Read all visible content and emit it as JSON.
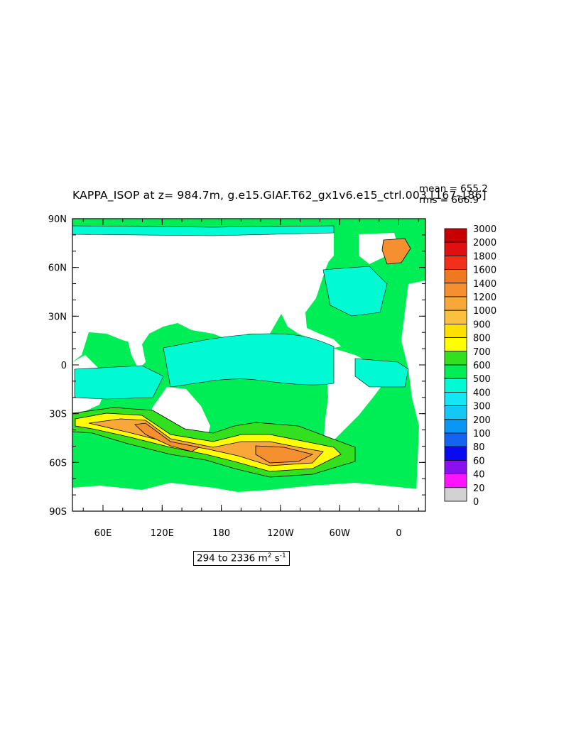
{
  "title": "KAPPA_ISOP at z= 984.7m, g.e15.GIAF.T62_gx1v6.e15_ctrl.003 [167-186]",
  "stats": {
    "mean": "mean = 655.2",
    "rms": "rms = 666.9"
  },
  "range": {
    "text": "294 to 2336 m",
    "unit_sup": "2",
    "unit_s": " s",
    "unit_s_sup": "-1"
  },
  "lat_labels": [
    "90N",
    "60N",
    "30N",
    "0",
    "30S",
    "60S",
    "90S"
  ],
  "lon_labels": [
    "60E",
    "120E",
    "180",
    "120W",
    "60W",
    "0"
  ],
  "colorbar": {
    "labels": [
      "3000",
      "2000",
      "1800",
      "1600",
      "1400",
      "1200",
      "1000",
      "900",
      "800",
      "700",
      "600",
      "500",
      "400",
      "300",
      "200",
      "100",
      "80",
      "60",
      "40",
      "20",
      "0"
    ],
    "colors": [
      "#c80000",
      "#e01010",
      "#f03018",
      "#f07820",
      "#f49030",
      "#f8a838",
      "#fcc040",
      "#ffe000",
      "#ffff00",
      "#33e01e",
      "#00ee55",
      "#00fbd2",
      "#14e6f5",
      "#14c8f5",
      "#0a96f5",
      "#1464f0",
      "#0a0af0",
      "#8c0ff0",
      "#ff14ff",
      "#d2d2d2",
      "#707070"
    ]
  },
  "colors": {
    "ocean_base": "#00ee55",
    "tropics": "#00fbd2",
    "southern_high": "#f8a838",
    "southern_core": "#ffff00",
    "land": "#ffffff"
  }
}
